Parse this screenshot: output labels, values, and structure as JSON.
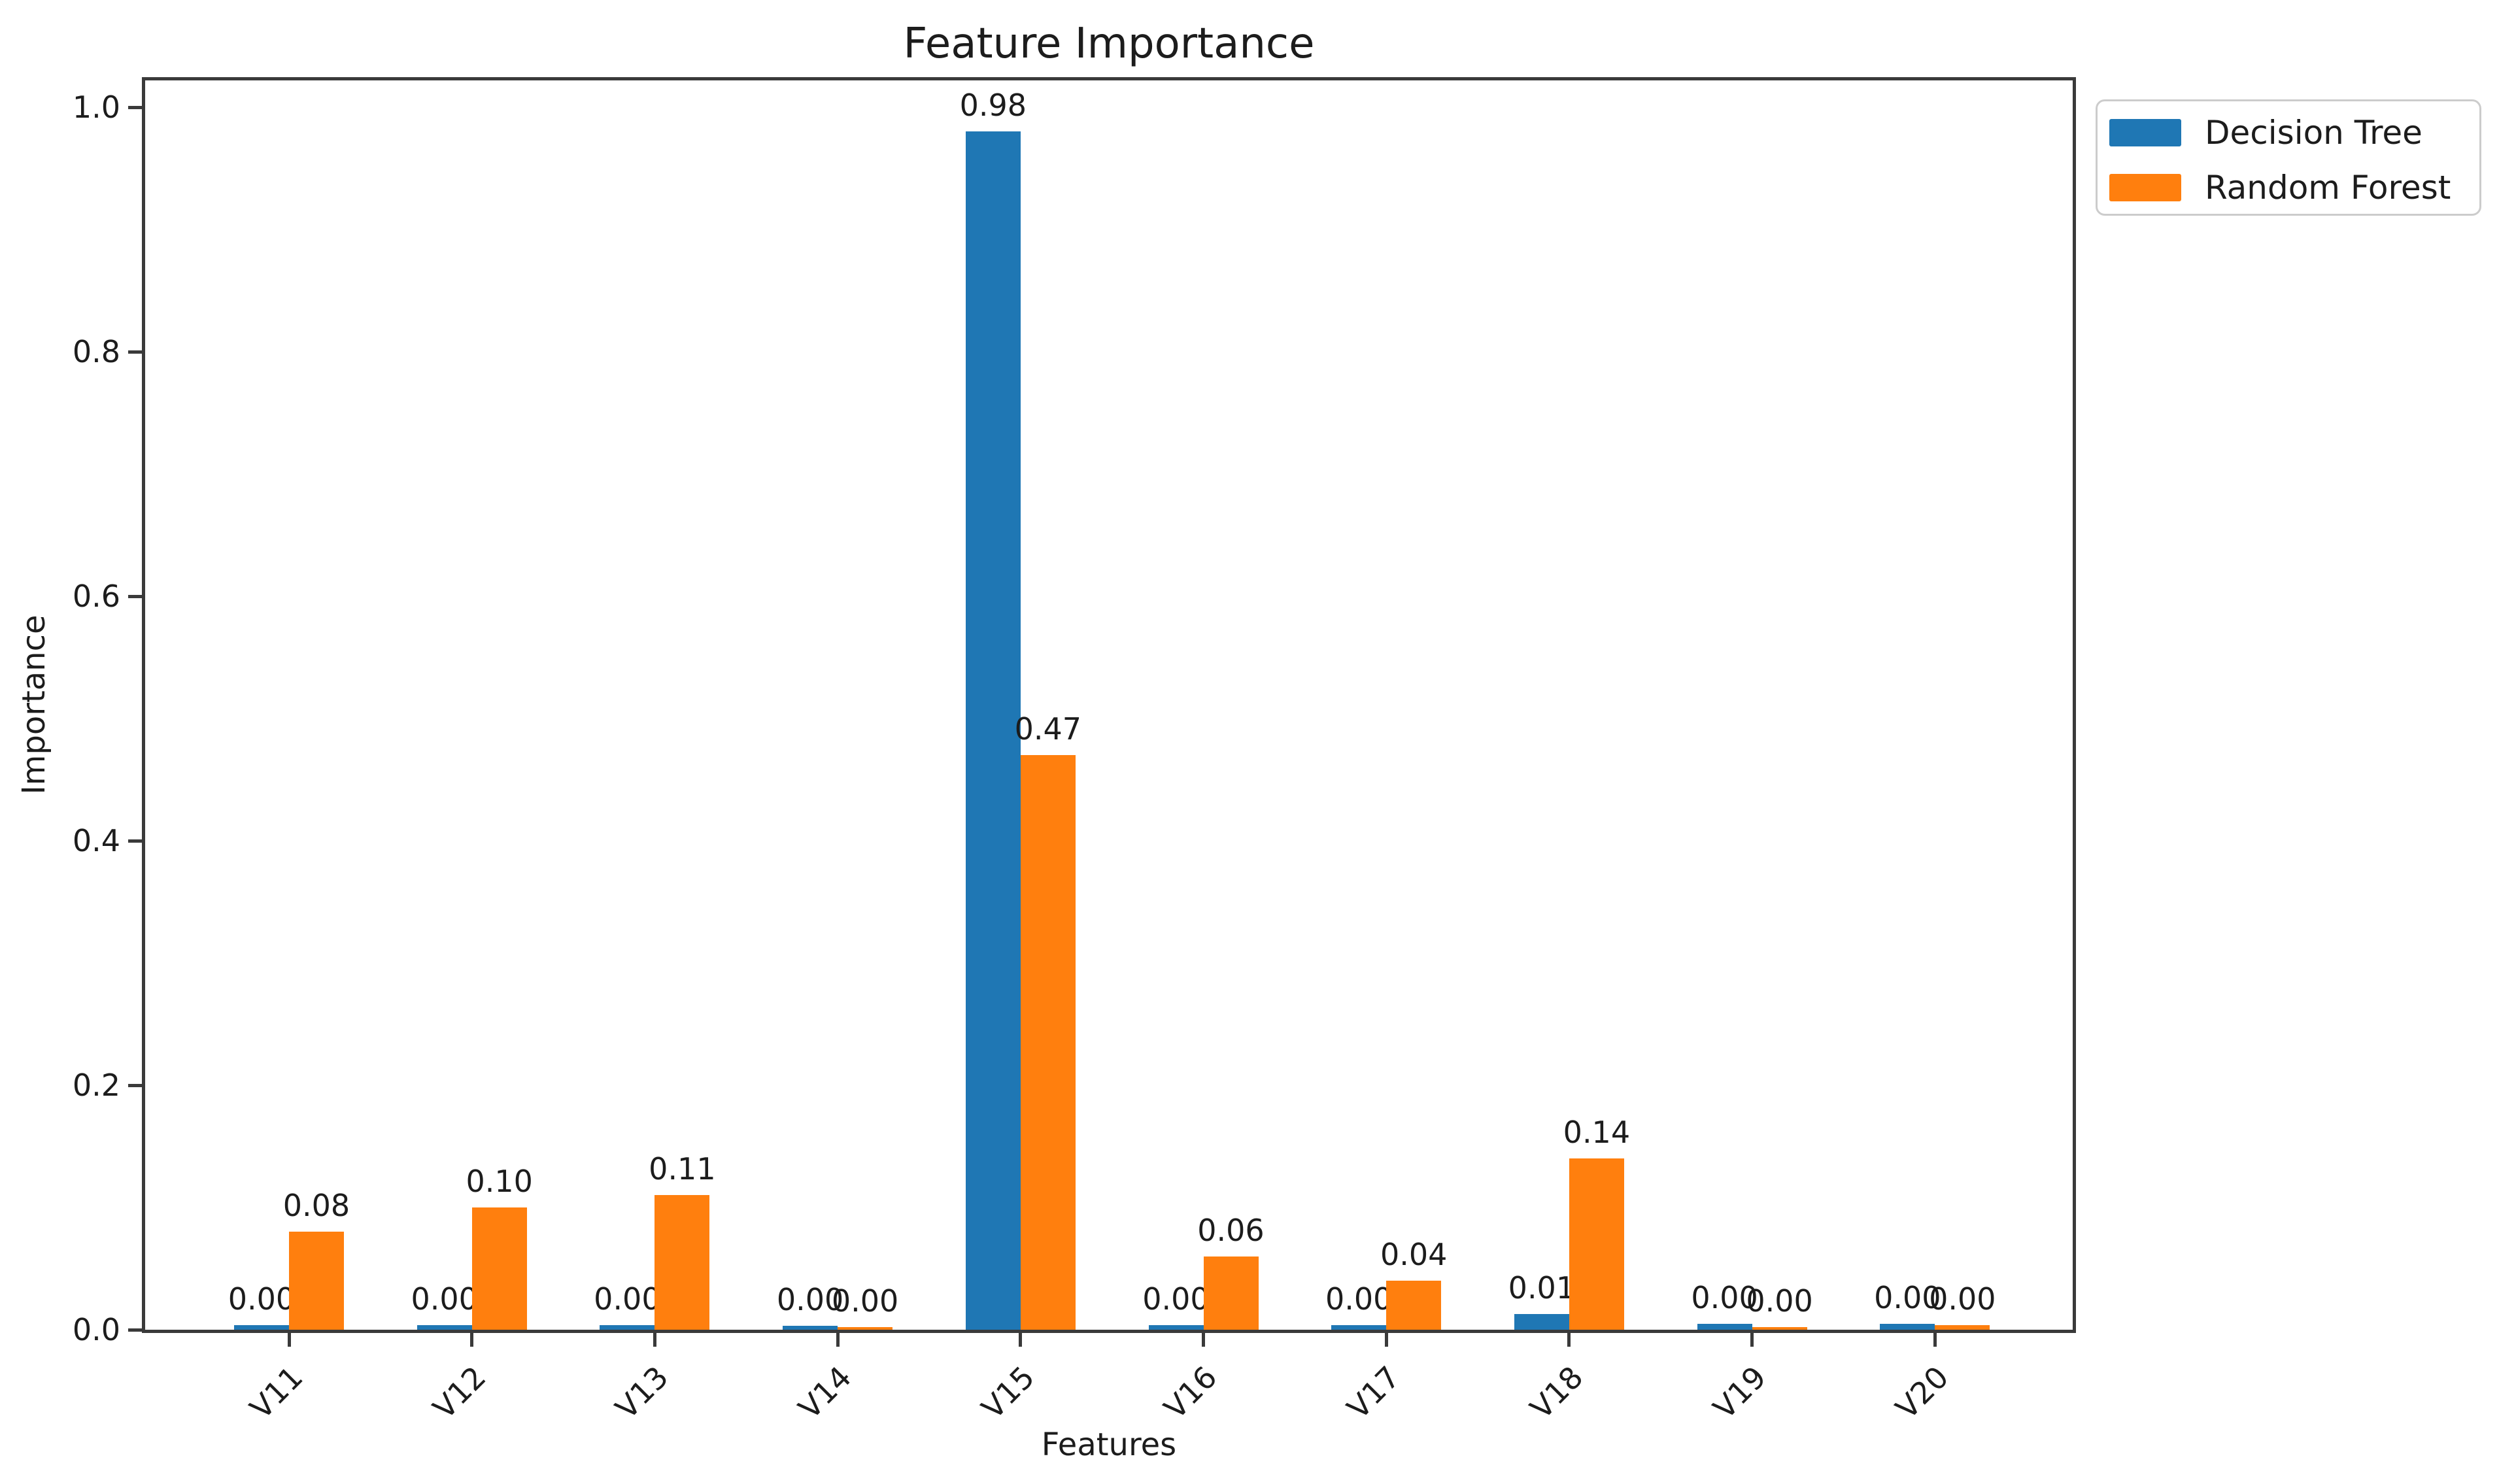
{
  "chart_data": {
    "type": "bar",
    "title": "Feature Importance",
    "xlabel": "Features",
    "ylabel": "Importance",
    "categories": [
      "V11",
      "V12",
      "V13",
      "V14",
      "V15",
      "V16",
      "V17",
      "V18",
      "V19",
      "V20"
    ],
    "series": [
      {
        "name": "Decision Tree",
        "color": "#1f77b4",
        "values": [
          0.004,
          0.004,
          0.004,
          0.003,
          0.98,
          0.004,
          0.004,
          0.013,
          0.005,
          0.005
        ],
        "bar_labels": [
          "0.00",
          "0.00",
          "0.00",
          "0.00",
          "0.98",
          "0.00",
          "0.00",
          "0.01",
          "0.00",
          "0.00"
        ]
      },
      {
        "name": "Random Forest",
        "color": "#ff7f0e",
        "values": [
          0.08,
          0.1,
          0.11,
          0.002,
          0.47,
          0.06,
          0.04,
          0.14,
          0.002,
          0.004
        ],
        "bar_labels": [
          "0.08",
          "0.10",
          "0.11",
          "0.00",
          "0.47",
          "0.06",
          "0.04",
          "0.14",
          "0.00",
          "0.00"
        ]
      }
    ],
    "yticks": [
      "0.0",
      "0.2",
      "0.4",
      "0.6",
      "0.8",
      "1.0"
    ],
    "ylim": [
      0.0,
      1.02
    ],
    "grid": false,
    "legend_position": "upper right outside plot"
  },
  "colors": {
    "background": "#ffffff",
    "spine": "#3a3a3a",
    "text": "#1c1c1c",
    "legend_border": "#cccccc",
    "decision_tree": "#1f77b4",
    "random_forest": "#ff7f0e"
  }
}
